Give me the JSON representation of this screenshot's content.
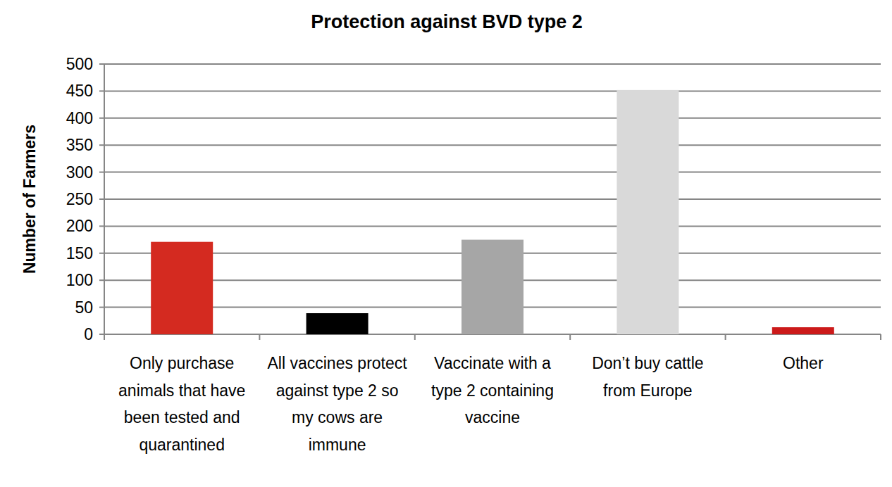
{
  "chart_data": {
    "type": "bar",
    "title": "Protection against BVD type 2",
    "y_label": "Number of Farmers",
    "categories": [
      "Only purchase animals that have been tested and quarantined",
      "All vaccines protect against type 2 so my cows are immune",
      "Vaccinate with a type 2 containing vaccine",
      "Don’t buy cattle from Europe",
      "Other"
    ],
    "values": [
      171,
      39,
      175,
      452,
      13
    ],
    "colors": [
      "#d42a20",
      "#000000",
      "#a6a6a6",
      "#d9d9d9",
      "#cc1a1a"
    ],
    "ylim": [
      0,
      500
    ],
    "yticks": [
      0,
      50,
      100,
      150,
      200,
      250,
      300,
      350,
      400,
      450,
      500
    ],
    "grid": true
  }
}
